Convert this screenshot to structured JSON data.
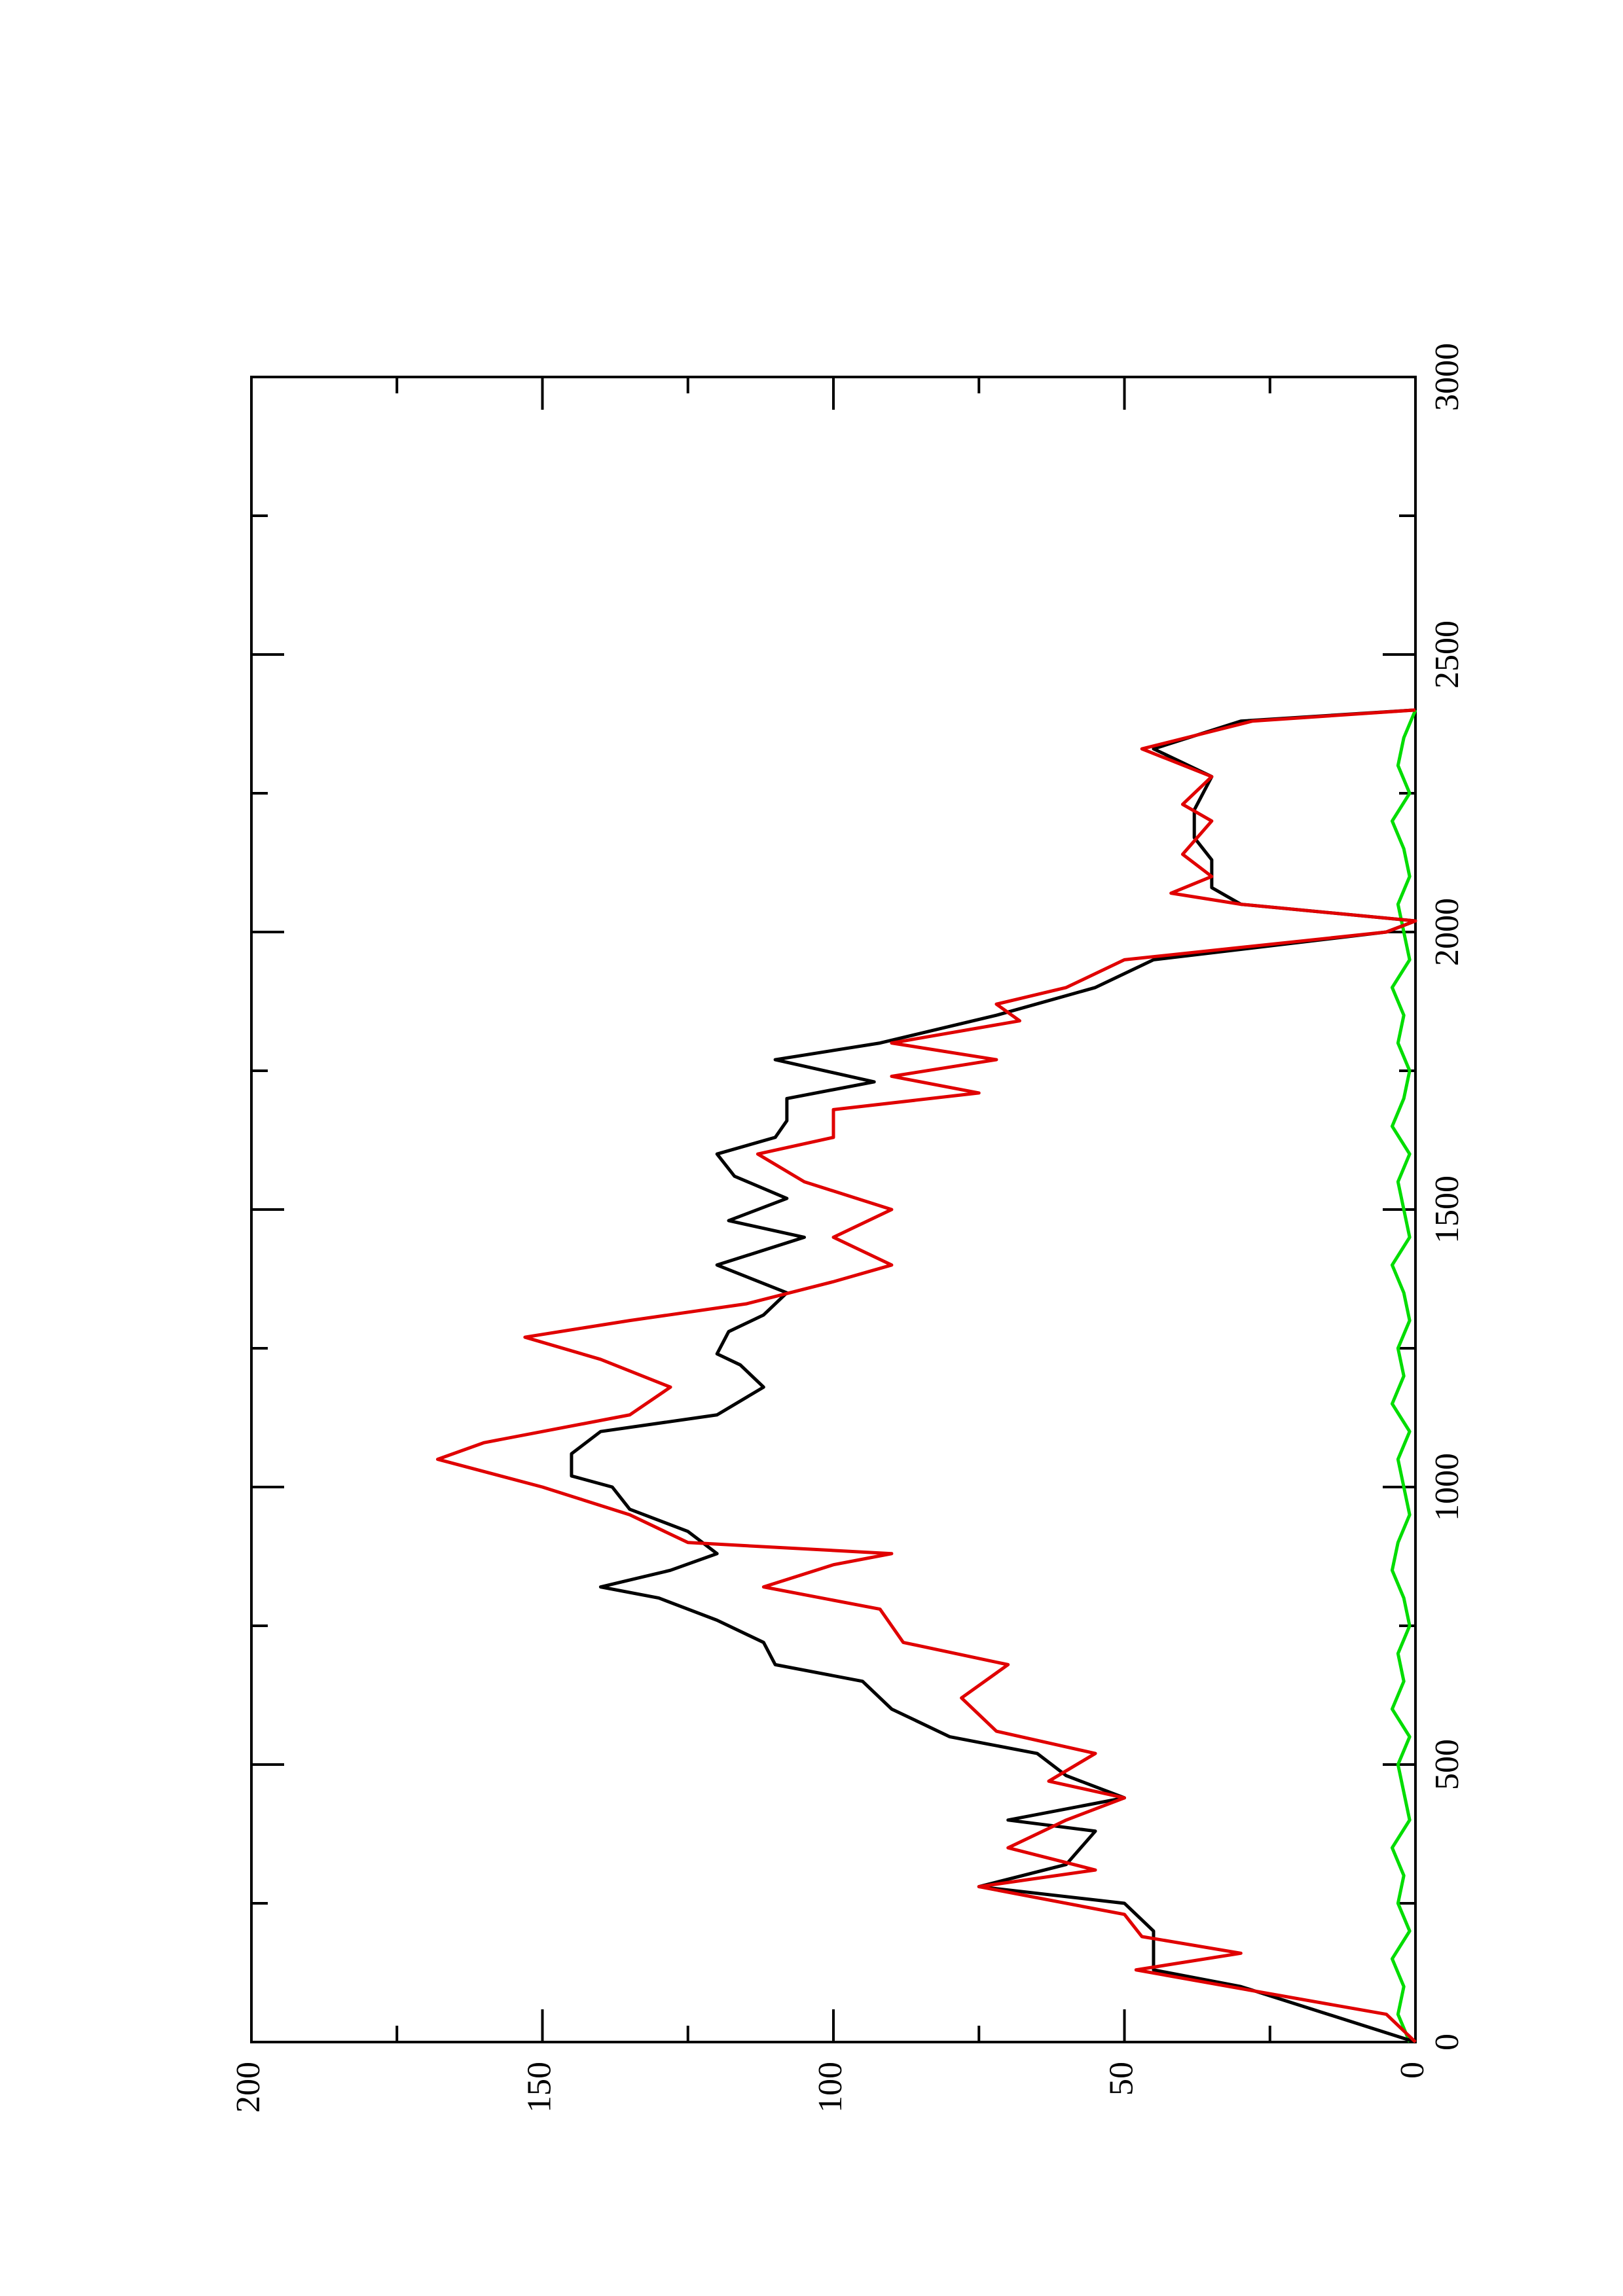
{
  "chart_data": {
    "type": "line",
    "xlim": [
      0,
      3000
    ],
    "xticks": [
      0,
      500,
      1000,
      1500,
      2000,
      2500,
      3000
    ],
    "xminorticks": [
      250,
      750,
      1250,
      1750,
      2250,
      2750
    ],
    "ylim": [
      0,
      200
    ],
    "yticks": [
      0,
      50,
      100,
      150,
      200
    ],
    "yminorticks": [
      25,
      75,
      125,
      175
    ],
    "series": [
      {
        "color": "#000000",
        "x": [
          0,
          100,
          130,
          200,
          250,
          280,
          320,
          380,
          400,
          440,
          480,
          520,
          550,
          600,
          650,
          680,
          720,
          760,
          800,
          820,
          850,
          880,
          920,
          960,
          1000,
          1020,
          1060,
          1100,
          1130,
          1180,
          1220,
          1240,
          1280,
          1310,
          1350,
          1400,
          1450,
          1480,
          1520,
          1560,
          1600,
          1630,
          1660,
          1700,
          1730,
          1770,
          1800,
          1850,
          1900,
          1950,
          2000,
          2020,
          2050,
          2080,
          2130,
          2170,
          2220,
          2280,
          2330,
          2380,
          2400
        ],
        "values": [
          0,
          30,
          45,
          45,
          50,
          75,
          60,
          55,
          70,
          50,
          60,
          65,
          80,
          90,
          95,
          110,
          112,
          120,
          130,
          140,
          128,
          120,
          125,
          135,
          138,
          145,
          145,
          140,
          120,
          112,
          116,
          120,
          118,
          112,
          108,
          120,
          105,
          118,
          108,
          117,
          120,
          110,
          108,
          108,
          93,
          110,
          92,
          72,
          55,
          45,
          5,
          0,
          30,
          35,
          35,
          38,
          38,
          35,
          45,
          30,
          0
        ]
      },
      {
        "color": "#e00000",
        "x": [
          0,
          50,
          100,
          130,
          160,
          190,
          230,
          280,
          310,
          350,
          400,
          440,
          470,
          520,
          560,
          620,
          680,
          720,
          780,
          820,
          860,
          880,
          900,
          950,
          1000,
          1050,
          1080,
          1100,
          1130,
          1180,
          1230,
          1270,
          1300,
          1330,
          1370,
          1400,
          1450,
          1500,
          1550,
          1600,
          1630,
          1680,
          1710,
          1740,
          1770,
          1800,
          1840,
          1870,
          1900,
          1950,
          2000,
          2020,
          2050,
          2070,
          2100,
          2140,
          2200,
          2230,
          2280,
          2330,
          2380,
          2400
        ],
        "values": [
          0,
          5,
          32,
          48,
          30,
          47,
          50,
          75,
          55,
          70,
          60,
          50,
          63,
          55,
          72,
          78,
          70,
          88,
          92,
          112,
          100,
          90,
          125,
          135,
          150,
          168,
          160,
          150,
          135,
          128,
          140,
          153,
          135,
          115,
          100,
          90,
          100,
          90,
          105,
          113,
          100,
          100,
          75,
          90,
          72,
          90,
          68,
          72,
          60,
          50,
          5,
          0,
          30,
          42,
          35,
          40,
          35,
          40,
          35,
          47,
          28,
          0
        ]
      },
      {
        "color": "#00dd00",
        "x": [
          0,
          50,
          100,
          150,
          200,
          250,
          300,
          350,
          400,
          450,
          500,
          550,
          600,
          650,
          700,
          750,
          800,
          850,
          900,
          950,
          1000,
          1050,
          1100,
          1150,
          1200,
          1250,
          1300,
          1350,
          1400,
          1450,
          1500,
          1550,
          1600,
          1650,
          1700,
          1750,
          1800,
          1850,
          1900,
          1950,
          2000,
          2050,
          2100,
          2150,
          2200,
          2250,
          2300,
          2350,
          2400
        ],
        "values": [
          1,
          3,
          2,
          4,
          1,
          3,
          2,
          4,
          1,
          2,
          3,
          1,
          4,
          2,
          3,
          1,
          2,
          4,
          3,
          1,
          2,
          3,
          1,
          4,
          2,
          3,
          1,
          2,
          4,
          1,
          2,
          3,
          1,
          4,
          2,
          1,
          3,
          2,
          4,
          1,
          2,
          3,
          1,
          2,
          4,
          1,
          3,
          2,
          0
        ]
      }
    ]
  }
}
